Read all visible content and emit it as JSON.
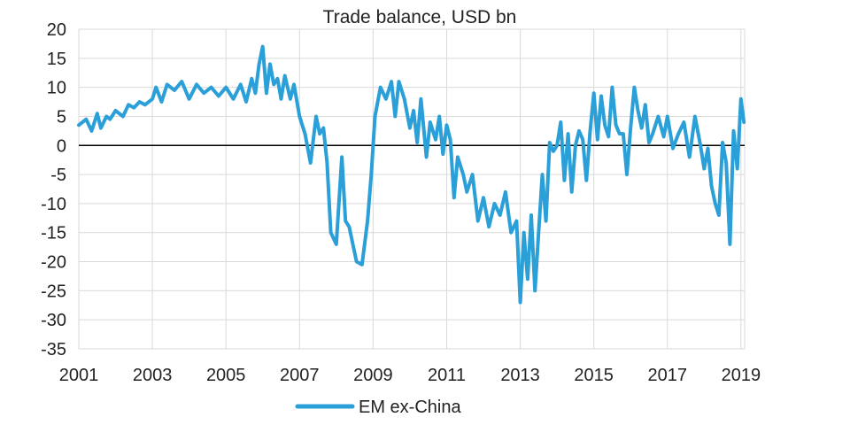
{
  "chart_data": {
    "type": "line",
    "title": "Trade balance, USD bn",
    "xlabel": "",
    "ylabel": "",
    "xlim": [
      2001,
      2019.1
    ],
    "ylim": [
      -35,
      20
    ],
    "x_ticks": [
      "2001",
      "2003",
      "2005",
      "2007",
      "2009",
      "2011",
      "2013",
      "2015",
      "2017",
      "2019"
    ],
    "y_ticks": [
      "20",
      "15",
      "10",
      "5",
      "0",
      "-5",
      "-10",
      "-15",
      "-20",
      "-25",
      "-30",
      "-35"
    ],
    "grid": true,
    "legend_position": "bottom-center",
    "series": [
      {
        "name": "EM ex-China",
        "color": "#2a9fd8",
        "x": [
          2001.0,
          2001.2,
          2001.35,
          2001.5,
          2001.6,
          2001.75,
          2001.85,
          2002.0,
          2002.2,
          2002.35,
          2002.5,
          2002.65,
          2002.8,
          2003.0,
          2003.1,
          2003.25,
          2003.4,
          2003.6,
          2003.8,
          2004.0,
          2004.2,
          2004.4,
          2004.6,
          2004.8,
          2005.0,
          2005.2,
          2005.4,
          2005.55,
          2005.7,
          2005.8,
          2005.9,
          2006.0,
          2006.1,
          2006.2,
          2006.3,
          2006.4,
          2006.5,
          2006.6,
          2006.75,
          2006.85,
          2007.0,
          2007.15,
          2007.3,
          2007.45,
          2007.55,
          2007.65,
          2007.75,
          2007.85,
          2008.0,
          2008.15,
          2008.25,
          2008.35,
          2008.45,
          2008.55,
          2008.7,
          2008.85,
          2008.95,
          2009.05,
          2009.2,
          2009.35,
          2009.5,
          2009.6,
          2009.7,
          2009.85,
          2010.0,
          2010.1,
          2010.2,
          2010.3,
          2010.45,
          2010.55,
          2010.7,
          2010.8,
          2010.9,
          2011.0,
          2011.1,
          2011.2,
          2011.3,
          2011.45,
          2011.55,
          2011.7,
          2011.85,
          2012.0,
          2012.15,
          2012.3,
          2012.45,
          2012.6,
          2012.75,
          2012.9,
          2013.0,
          2013.1,
          2013.2,
          2013.3,
          2013.4,
          2013.5,
          2013.6,
          2013.7,
          2013.8,
          2013.9,
          2014.0,
          2014.1,
          2014.2,
          2014.3,
          2014.4,
          2014.5,
          2014.6,
          2014.7,
          2014.8,
          2014.9,
          2015.0,
          2015.1,
          2015.2,
          2015.3,
          2015.4,
          2015.5,
          2015.6,
          2015.7,
          2015.8,
          2015.9,
          2016.0,
          2016.1,
          2016.2,
          2016.3,
          2016.4,
          2016.5,
          2016.6,
          2016.75,
          2016.9,
          2017.0,
          2017.15,
          2017.3,
          2017.45,
          2017.6,
          2017.75,
          2017.9,
          2018.0,
          2018.1,
          2018.2,
          2018.3,
          2018.4,
          2018.5,
          2018.6,
          2018.7,
          2018.8,
          2018.9,
          2019.0,
          2019.08
        ],
        "y": [
          3.5,
          4.5,
          2.5,
          5.5,
          3.0,
          5.0,
          4.5,
          6.0,
          5.0,
          7.0,
          6.5,
          7.5,
          7.0,
          8.0,
          10.0,
          7.5,
          10.5,
          9.5,
          11.0,
          8.0,
          10.5,
          9.0,
          10.0,
          8.5,
          10.0,
          8.0,
          10.5,
          7.5,
          11.5,
          9.0,
          14.0,
          17.0,
          9.0,
          14.0,
          10.5,
          11.5,
          8.0,
          12.0,
          8.0,
          10.5,
          5.0,
          2.0,
          -3.0,
          5.0,
          2.0,
          3.0,
          -3.0,
          -15.0,
          -17.0,
          -2.0,
          -13.0,
          -14.0,
          -17.0,
          -20.0,
          -20.5,
          -13.0,
          -5.0,
          5.0,
          10.0,
          8.0,
          11.0,
          5.0,
          11.0,
          8.0,
          3.0,
          6.0,
          0.5,
          8.0,
          -2.0,
          4.0,
          1.0,
          5.0,
          -1.5,
          3.5,
          1.0,
          -9.0,
          -2.0,
          -5.0,
          -8.0,
          -5.0,
          -13.0,
          -9.0,
          -14.0,
          -10.0,
          -12.0,
          -8.0,
          -15.0,
          -13.0,
          -27.0,
          -15.0,
          -23.0,
          -12.0,
          -25.0,
          -15.0,
          -5.0,
          -13.0,
          0.5,
          -1.0,
          0.0,
          4.0,
          -6.0,
          2.0,
          -8.0,
          0.0,
          2.5,
          1.0,
          -6.0,
          2.5,
          9.0,
          1.0,
          8.5,
          3.5,
          1.5,
          10.0,
          3.5,
          2.0,
          2.0,
          -5.0,
          3.0,
          10.0,
          6.0,
          3.0,
          7.0,
          0.5,
          2.0,
          5.0,
          1.5,
          5.0,
          -0.5,
          2.0,
          4.0,
          -2.0,
          5.0,
          0.0,
          -4.0,
          -0.5,
          -7.0,
          -10.0,
          -12.0,
          0.5,
          -3.0,
          -17.0,
          2.5,
          -4.0,
          8.0,
          4.0
        ]
      }
    ]
  }
}
